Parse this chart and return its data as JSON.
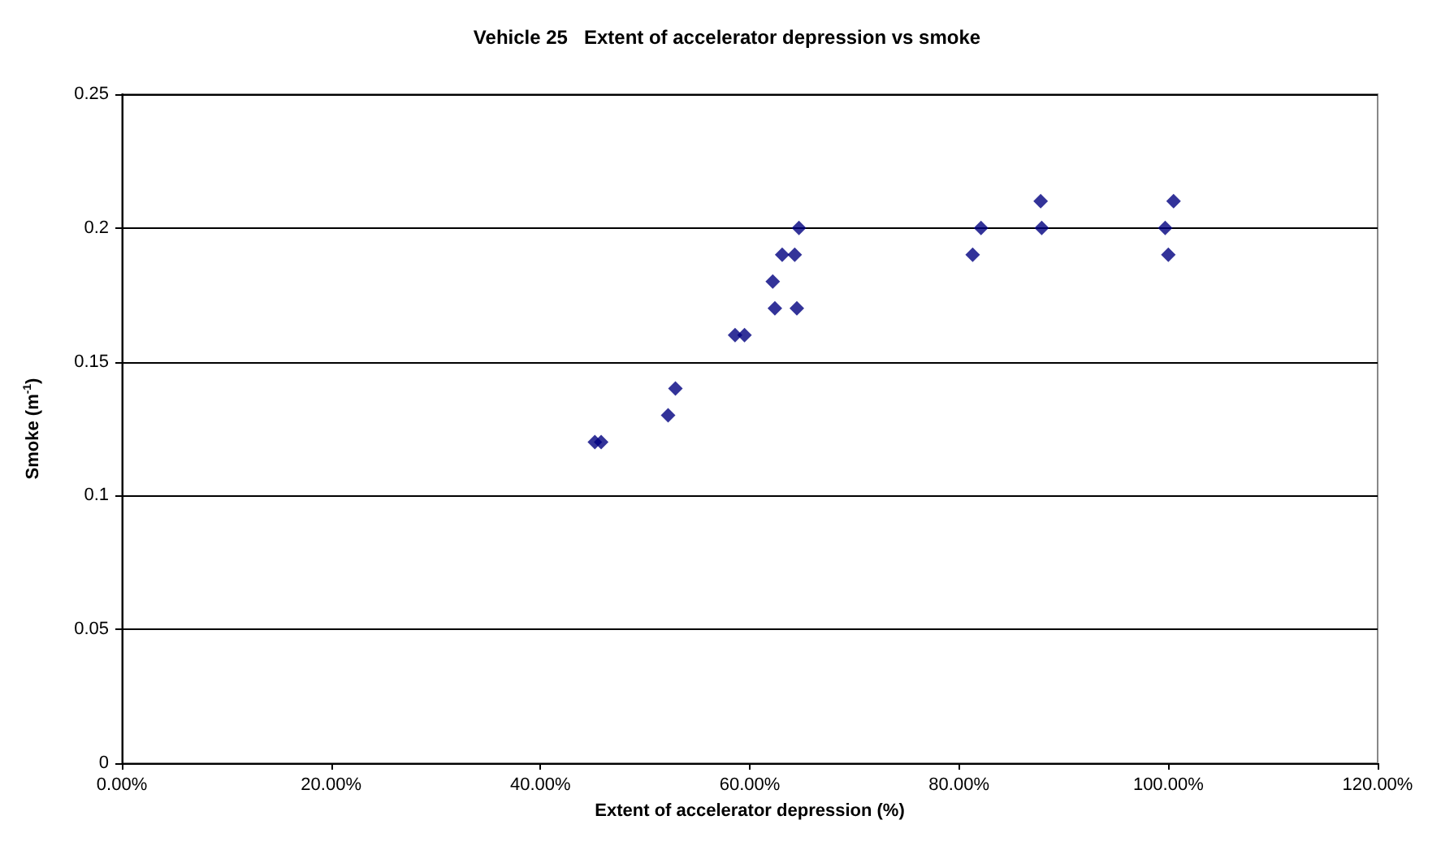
{
  "chart_data": {
    "type": "scatter",
    "title": "Vehicle 25   Extent of accelerator depression vs smoke",
    "xlabel": "Extent of accelerator depression (%)",
    "ylabel": "Smoke (m$^{-1}$)",
    "x": [
      45.2,
      45.8,
      52.2,
      52.9,
      58.6,
      59.5,
      62.4,
      64.5,
      62.2,
      63.1,
      64.3,
      64.7,
      81.3,
      82.1,
      87.8,
      87.9,
      99.7,
      100.0,
      100.5
    ],
    "values": [
      0.12,
      0.12,
      0.13,
      0.14,
      0.16,
      0.16,
      0.17,
      0.17,
      0.18,
      0.19,
      0.19,
      0.2,
      0.19,
      0.2,
      0.21,
      0.2,
      0.2,
      0.19,
      0.21
    ],
    "color": "#000080",
    "marker": "diamond",
    "xlim": [
      0,
      120
    ],
    "xticks": [
      {
        "value": 0,
        "label": "0.00%"
      },
      {
        "value": 20,
        "label": "20.00%"
      },
      {
        "value": 40,
        "label": "40.00%"
      },
      {
        "value": 60,
        "label": "60.00%"
      },
      {
        "value": 80,
        "label": "80.00%"
      },
      {
        "value": 100,
        "label": "100.00%"
      },
      {
        "value": 120,
        "label": "120.00%"
      }
    ],
    "ylim": [
      0,
      0.25
    ],
    "yticks": [
      0,
      0.05,
      0.1,
      0.15,
      0.2,
      0.25
    ],
    "grid": "y"
  }
}
